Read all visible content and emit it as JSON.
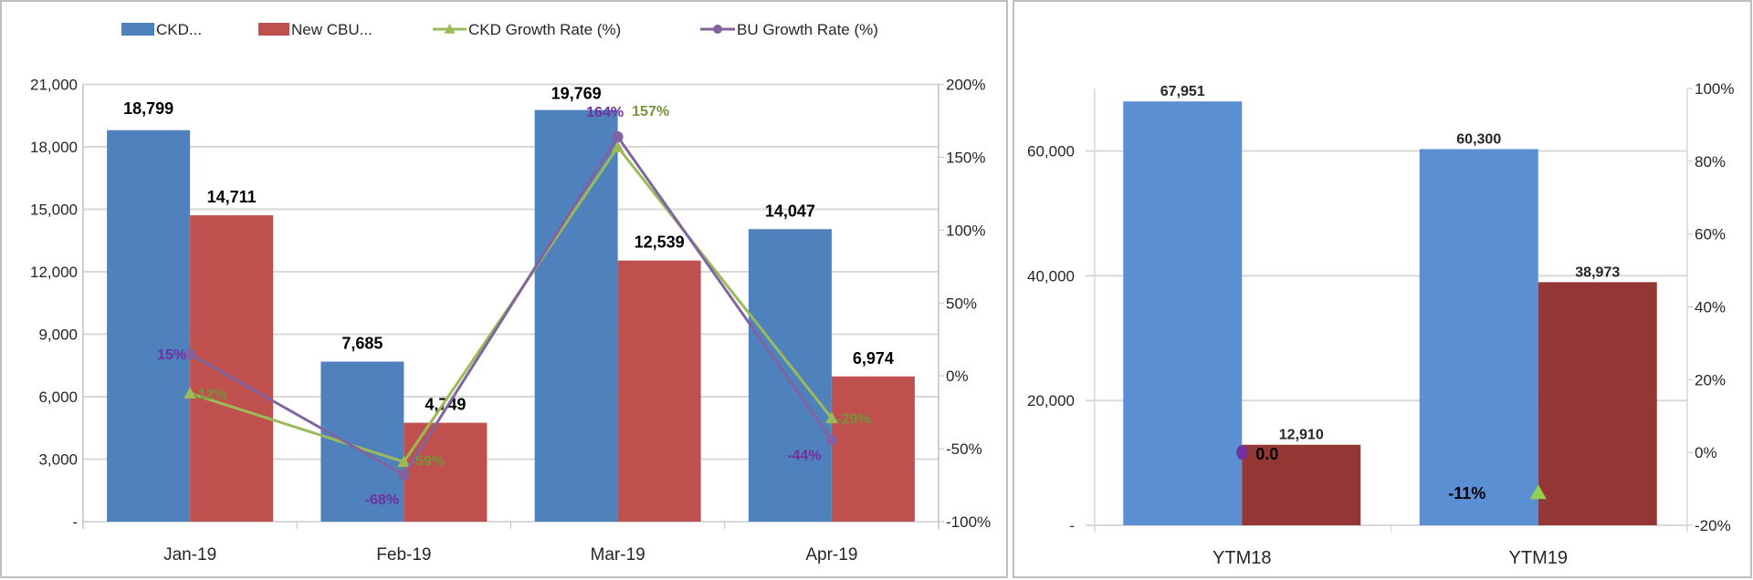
{
  "chart_data": [
    {
      "type": "bar",
      "categories": [
        "Jan-19",
        "Feb-19",
        "Mar-19",
        "Apr-19"
      ],
      "ylim": [
        0,
        21000
      ],
      "yticks": [
        "-",
        "3,000",
        "6,000",
        "9,000",
        "12,000",
        "15,000",
        "18,000",
        "21,000"
      ],
      "y2lim": [
        -100,
        200
      ],
      "y2ticks": [
        "-100%",
        "-50%",
        "0%",
        "50%",
        "100%",
        "150%",
        "200%"
      ],
      "grid": true,
      "legend_position": "top",
      "series": [
        {
          "name": "CKD...",
          "kind": "bar",
          "color": "#4f81bd",
          "values": [
            18799,
            7685,
            19769,
            14047
          ],
          "labels": [
            "18,799",
            "7,685",
            "19,769",
            "14,047"
          ]
        },
        {
          "name": "New CBU...",
          "kind": "bar",
          "color": "#c0504d",
          "values": [
            14711,
            4749,
            12539,
            6974
          ],
          "labels": [
            "14,711",
            "4,749",
            "12,539",
            "6,974"
          ]
        },
        {
          "name": "CKD Growth Rate (%)",
          "kind": "line",
          "axis": "right",
          "marker": "triangle",
          "color": "#9bbb59",
          "label_color": "#76923c",
          "values": [
            -12,
            -59,
            157,
            -29
          ],
          "labels": [
            "-12%",
            "-59%",
            "157%",
            "-29%"
          ]
        },
        {
          "name": "BU Growth Rate (%)",
          "kind": "line",
          "axis": "right",
          "marker": "circle",
          "color": "#8064a2",
          "label_color": "#7030a0",
          "values": [
            15,
            -68,
            164,
            -44
          ],
          "labels": [
            "15%",
            "-68%",
            "164%",
            "-44%"
          ]
        }
      ]
    },
    {
      "type": "bar",
      "categories": [
        "YTM18",
        "YTM19"
      ],
      "ylim": [
        0,
        70000
      ],
      "yticks": [
        "-",
        "20,000",
        "40,000",
        "60,000"
      ],
      "y2lim": [
        -20,
        100
      ],
      "y2ticks": [
        "-20%",
        "0%",
        "20%",
        "40%",
        "60%",
        "80%",
        "100%"
      ],
      "grid": true,
      "series": [
        {
          "kind": "bar",
          "color": "#5b8fd4",
          "values": [
            67951,
            60300
          ],
          "labels": [
            "67,951",
            "60,300"
          ]
        },
        {
          "kind": "bar",
          "color": "#943634",
          "values": [
            12910,
            38973
          ],
          "labels": [
            "12,910",
            "38,973"
          ]
        },
        {
          "kind": "marker",
          "marker": "circle",
          "color": "#7030a0",
          "category": "YTM18",
          "value": 0,
          "label": "0.0"
        },
        {
          "kind": "marker",
          "marker": "triangle",
          "color": "#92d050",
          "category": "YTM19",
          "value": -11,
          "label": "-11%"
        }
      ]
    }
  ]
}
